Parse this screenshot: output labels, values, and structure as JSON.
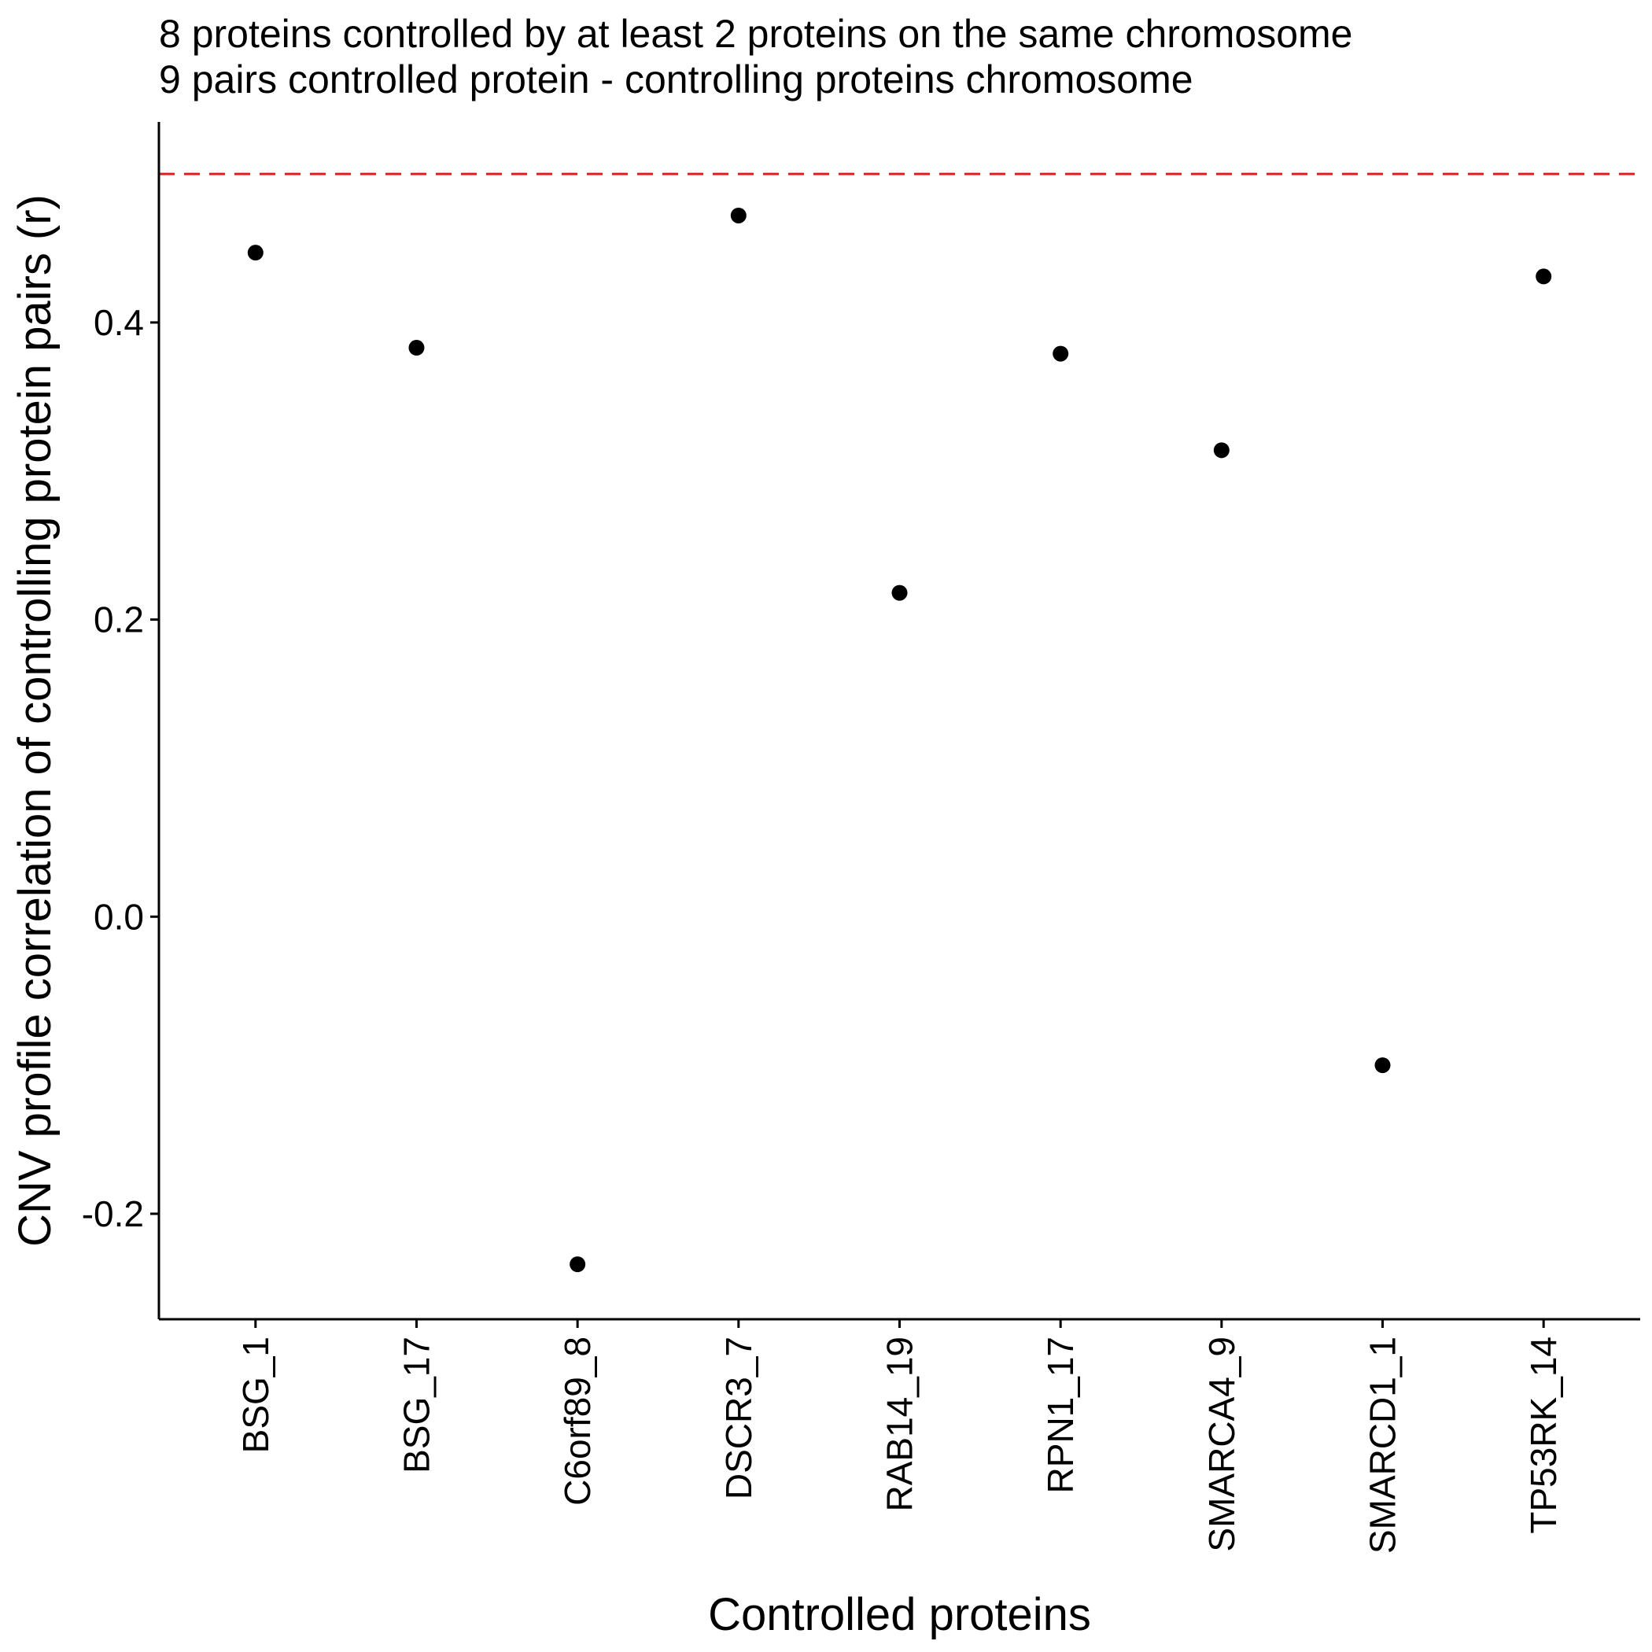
{
  "chart_data": {
    "type": "scatter",
    "title_lines": [
      "8 proteins controlled by at least 2 proteins on the same chromosome",
      "9 pairs controlled protein - controlling proteins chromosome"
    ],
    "xlabel": "Controlled proteins",
    "ylabel": "CNV profile correlation of controlling protein pairs (r)",
    "categories": [
      "BSG_1",
      "BSG_17",
      "C6orf89_8",
      "DSCR3_7",
      "RAB14_19",
      "RPN1_17",
      "SMARCA4_9",
      "SMARCD1_1",
      "TP53RK_14"
    ],
    "values": [
      0.447,
      0.383,
      -0.234,
      0.472,
      0.218,
      0.379,
      0.314,
      -0.1,
      0.431
    ],
    "ylim": [
      -0.271,
      0.535
    ],
    "yticks": [
      -0.2,
      0.0,
      0.2,
      0.4
    ],
    "ytick_labels": [
      "-0.2",
      "0.0",
      "0.2",
      "0.4"
    ],
    "reference_line": {
      "y": 0.5,
      "style": "dashed",
      "color": "#e41a1c"
    },
    "point_color": "#000000",
    "grid": false,
    "legend": "none"
  }
}
